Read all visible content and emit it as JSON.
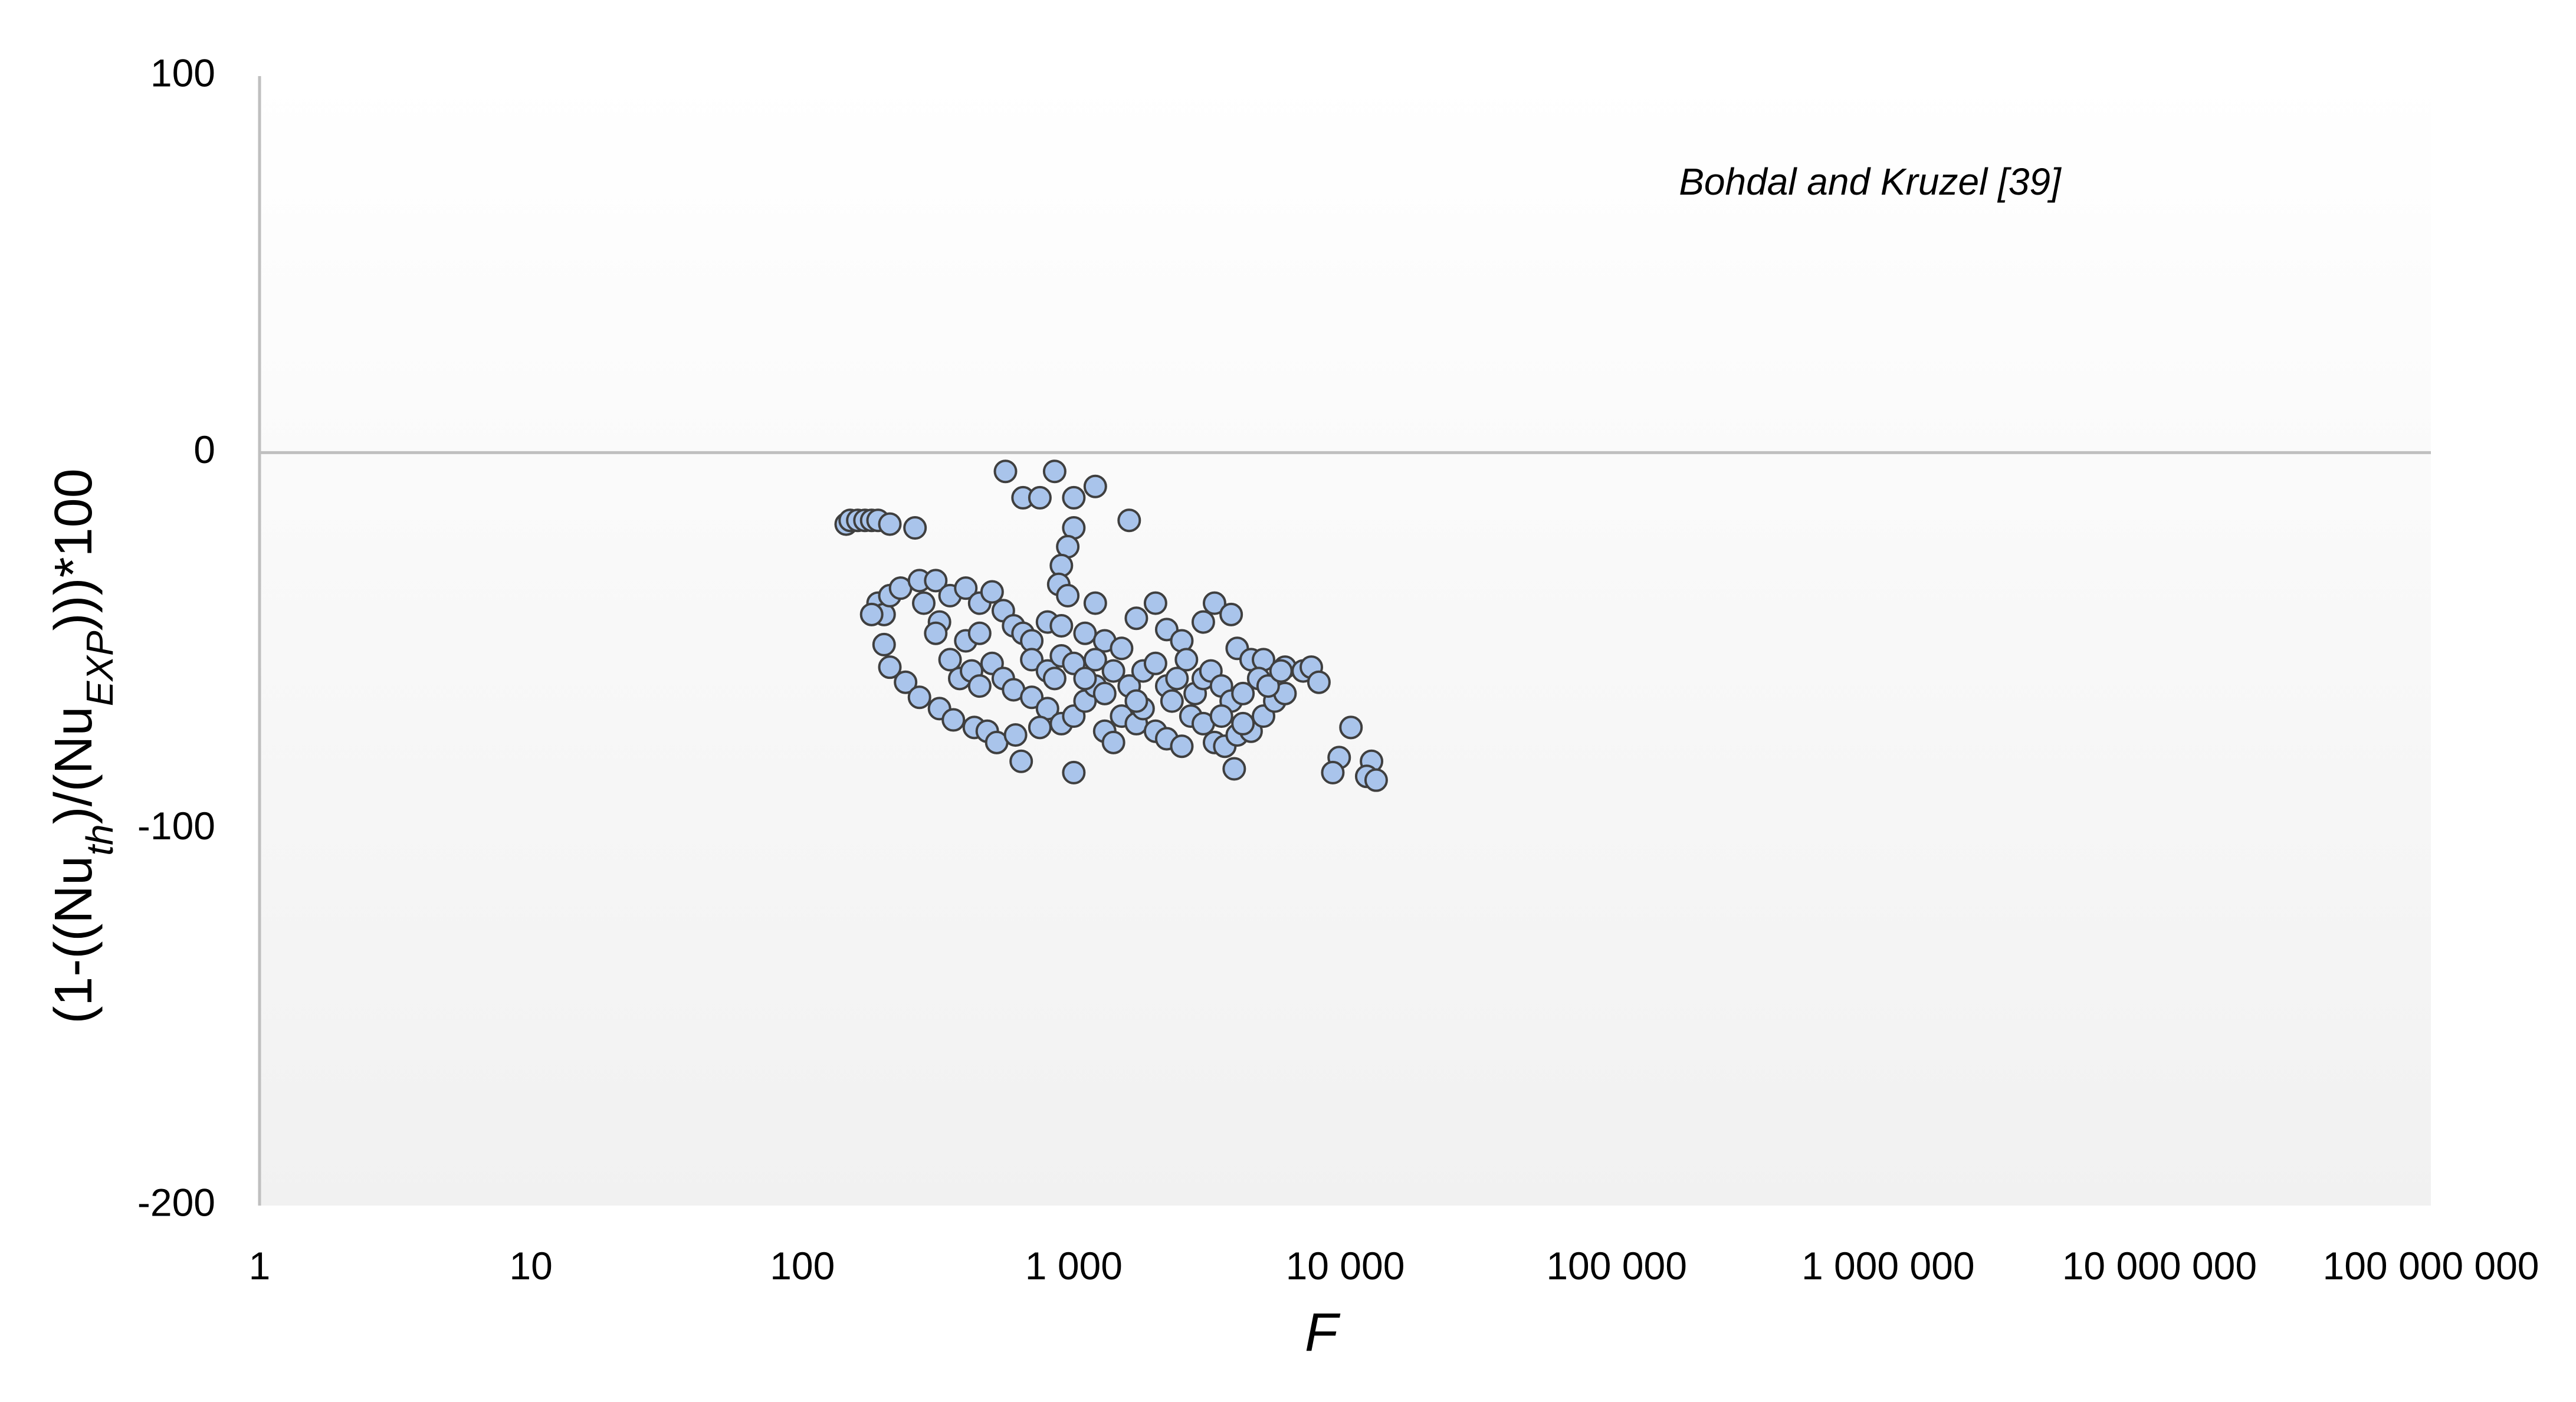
{
  "chart_data": {
    "type": "scatter",
    "annotation": "Bohdal and Kruzel [39]",
    "x_label": "F",
    "y_label": [
      "(1-((Nu",
      "th",
      ")/(Nu",
      "EXP",
      ")))*100"
    ],
    "xlim": [
      1,
      100000000
    ],
    "xscale": "log",
    "xticks": [
      1,
      10,
      100,
      {
        "value": 1000,
        "label": "1 000"
      },
      {
        "value": 10000,
        "label": "10 000"
      },
      {
        "value": 100000,
        "label": "100 000"
      },
      {
        "value": 1000000,
        "label": "1 000 000"
      },
      {
        "value": 10000000,
        "label": "10 000 000"
      },
      {
        "value": 100000000,
        "label": "100 000 000"
      }
    ],
    "ylim": [
      -200,
      100
    ],
    "yticks": [
      -200,
      -100,
      0,
      100
    ],
    "color": "#a9c4eb",
    "edge_color": "#3f3f3f",
    "x": [
      145,
      150,
      160,
      170,
      180,
      190,
      210,
      260,
      560,
      850,
      650,
      750,
      1000,
      1200,
      1600,
      1000,
      950,
      900,
      880,
      950,
      190,
      200,
      180,
      210,
      230,
      270,
      310,
      280,
      320,
      310,
      200,
      210,
      240,
      270,
      320,
      360,
      430,
      480,
      520,
      610,
      640,
      1000,
      3900,
      350,
      400,
      450,
      500,
      550,
      600,
      650,
      700,
      800,
      900,
      1100,
      1200,
      1300,
      1500,
      1700,
      2000,
      2200,
      2500,
      3000,
      3300,
      3800,
      4000,
      4500,
      5000,
      6000,
      7000,
      7500,
      8000,
      350,
      380,
      420,
      450,
      500,
      550,
      600,
      700,
      800,
      900,
      1000,
      1100,
      1200,
      1300,
      1400,
      1500,
      1700,
      1800,
      2000,
      2200,
      2500,
      2700,
      3000,
      3300,
      3600,
      4000,
      4500,
      5000,
      5500,
      6000,
      400,
      450,
      700,
      800,
      900,
      1000,
      1100,
      1200,
      1400,
      1600,
      1800,
      2000,
      2200,
      2400,
      2600,
      2800,
      3000,
      3200,
      3500,
      3800,
      4200,
      4800,
      5200,
      5800,
      10500,
      9500,
      9000,
      12500,
      12000,
      13000,
      750,
      850,
      1300,
      1700,
      2300,
      3500,
      4200
    ],
    "values": [
      -19,
      -18,
      -18,
      -18,
      -18,
      -18,
      -19,
      -20,
      -5,
      -5,
      -12,
      -12,
      -12,
      -9,
      -18,
      -20,
      -25,
      -30,
      -35,
      -38,
      -40,
      -43,
      -43,
      -38,
      -36,
      -34,
      -34,
      -40,
      -45,
      -48,
      -51,
      -57,
      -61,
      -65,
      -68,
      -71,
      -73,
      -74,
      -77,
      -75,
      -82,
      -85,
      -84,
      -38,
      -36,
      -40,
      -37,
      -42,
      -46,
      -48,
      -50,
      -45,
      -46,
      -48,
      -40,
      -50,
      -52,
      -44,
      -40,
      -47,
      -50,
      -45,
      -40,
      -43,
      -52,
      -55,
      -55,
      -57,
      -58,
      -57,
      -61,
      -55,
      -60,
      -58,
      -62,
      -56,
      -60,
      -63,
      -65,
      -68,
      -72,
      -70,
      -66,
      -62,
      -74,
      -77,
      -70,
      -72,
      -68,
      -74,
      -76,
      -78,
      -70,
      -72,
      -77,
      -78,
      -75,
      -74,
      -70,
      -66,
      -64,
      -50,
      -48,
      -55,
      -58,
      -54,
      -56,
      -60,
      -55,
      -58,
      -62,
      -58,
      -56,
      -62,
      -60,
      -55,
      -64,
      -60,
      -58,
      -62,
      -66,
      -64,
      -60,
      -62,
      -58,
      -73,
      -81,
      -85,
      -82,
      -86,
      -87,
      -73,
      -60,
      -64,
      -66,
      -66,
      -70,
      -72
    ]
  }
}
